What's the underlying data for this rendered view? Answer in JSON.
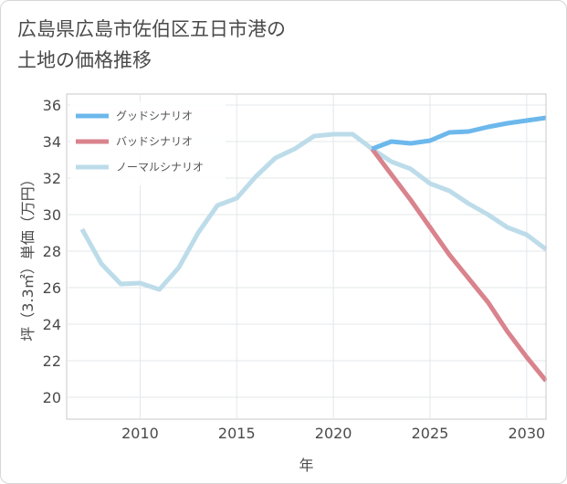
{
  "title_line1": "広島県広島市佐伯区五日市港の",
  "title_line2": "土地の価格推移",
  "chart_data": {
    "type": "line",
    "xlabel": "年",
    "ylabel": "坪（3.3㎡）単価（万円）",
    "xlim": [
      2006.2,
      2031
    ],
    "ylim": [
      18.8,
      36.6
    ],
    "xticks": [
      2010,
      2015,
      2020,
      2025,
      2030
    ],
    "yticks": [
      20,
      22,
      24,
      26,
      28,
      30,
      32,
      34,
      36
    ],
    "grid": true,
    "legend_position": "top-left",
    "series": [
      {
        "name": "グッドシナリオ",
        "color": "#6cb8ec",
        "x": [
          2022,
          2023,
          2024,
          2025,
          2026,
          2027,
          2028,
          2029,
          2030,
          2031
        ],
        "y": [
          33.6,
          34.0,
          33.9,
          34.05,
          34.5,
          34.55,
          34.8,
          35.0,
          35.15,
          35.3
        ]
      },
      {
        "name": "バッドシナリオ",
        "color": "#d9838d",
        "x": [
          2022,
          2023,
          2024,
          2025,
          2026,
          2027,
          2028,
          2029,
          2030,
          2031
        ],
        "y": [
          33.6,
          32.2,
          30.8,
          29.3,
          27.8,
          26.5,
          25.2,
          23.6,
          22.2,
          20.9
        ]
      },
      {
        "name": "ノーマルシナリオ",
        "color": "#bddcea",
        "x": [
          2007,
          2008,
          2009,
          2010,
          2011,
          2012,
          2013,
          2014,
          2015,
          2016,
          2017,
          2018,
          2019,
          2020,
          2021,
          2022,
          2023,
          2024,
          2025,
          2026,
          2027,
          2028,
          2029,
          2030,
          2031
        ],
        "y": [
          29.2,
          27.3,
          26.2,
          26.25,
          25.9,
          27.1,
          29.0,
          30.5,
          30.9,
          32.1,
          33.1,
          33.6,
          34.3,
          34.4,
          34.4,
          33.6,
          32.9,
          32.5,
          31.7,
          31.3,
          30.6,
          30.0,
          29.3,
          28.9,
          28.1
        ]
      }
    ]
  }
}
